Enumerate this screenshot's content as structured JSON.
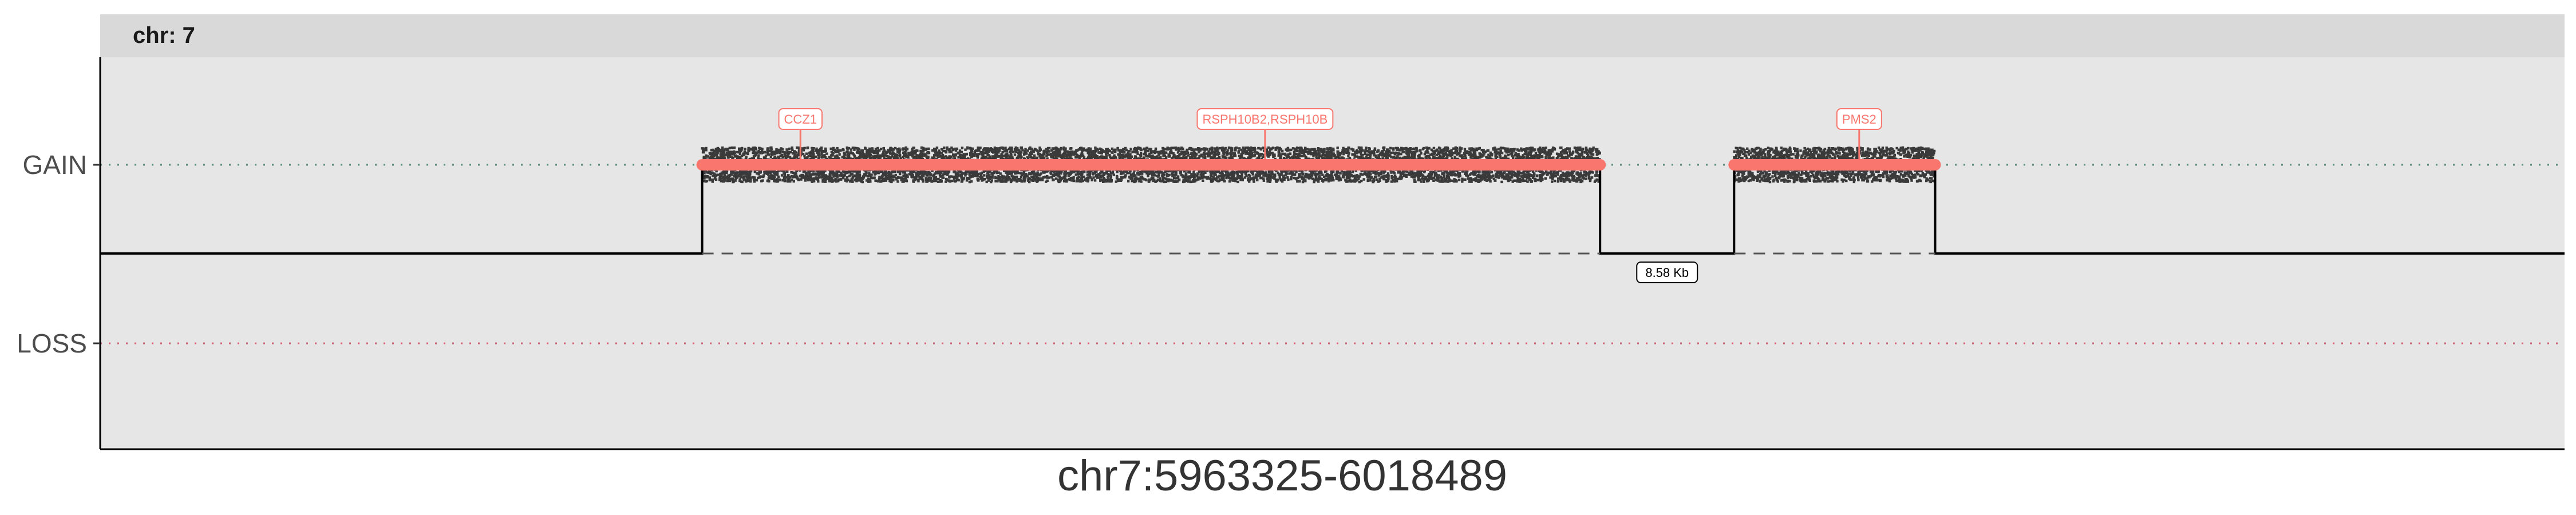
{
  "chart_data": {
    "type": "scatter",
    "panel_label": "chr: 7",
    "x_title": "chr7:5963325-6018489",
    "y_categories": [
      "GAIN",
      "LOSS"
    ],
    "xlim": [
      5963325,
      6018489
    ],
    "segments": [
      {
        "start": 5976800,
        "end": 5996900,
        "call": "GAIN"
      },
      {
        "start": 5999900,
        "end": 6004400,
        "call": "GAIN"
      }
    ],
    "genes": [
      {
        "name": "CCZ1",
        "pos": 5979000
      },
      {
        "name": "RSPH10B2,RSPH10B",
        "pos": 5989400
      },
      {
        "name": "PMS2",
        "pos": 6002700
      }
    ],
    "gap_label": "8.58 Kb",
    "colors": {
      "panel_bg": "#e6e6e6",
      "strip_bg": "#d9d9d9",
      "gain_ref": "#5b8a7a",
      "loss_ref": "#d0627a",
      "segment": "#f8766d",
      "points": "#000000"
    }
  }
}
